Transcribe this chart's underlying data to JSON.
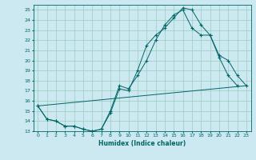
{
  "title": "",
  "xlabel": "Humidex (Indice chaleur)",
  "bg_color": "#cce8f0",
  "grid_color": "#99ccbb",
  "line_color": "#006666",
  "xlim": [
    -0.5,
    23.5
  ],
  "ylim": [
    13,
    25.5
  ],
  "xticks": [
    0,
    1,
    2,
    3,
    4,
    5,
    6,
    7,
    8,
    9,
    10,
    11,
    12,
    13,
    14,
    15,
    16,
    17,
    18,
    19,
    20,
    21,
    22,
    23
  ],
  "yticks": [
    13,
    14,
    15,
    16,
    17,
    18,
    19,
    20,
    21,
    22,
    23,
    24,
    25
  ],
  "line1_x": [
    0,
    1,
    2,
    3,
    4,
    5,
    6,
    7,
    8,
    9,
    10,
    11,
    12,
    13,
    14,
    15,
    16,
    17,
    18,
    19,
    20,
    21,
    22
  ],
  "line1_y": [
    15.5,
    14.2,
    14.0,
    13.5,
    13.5,
    13.2,
    13.0,
    13.2,
    14.8,
    17.2,
    17.0,
    19.0,
    21.5,
    22.5,
    23.2,
    24.2,
    25.2,
    25.0,
    23.5,
    22.5,
    20.3,
    18.5,
    17.5
  ],
  "line2_x": [
    0,
    1,
    2,
    3,
    4,
    5,
    6,
    7,
    8,
    9,
    10,
    11,
    12,
    13,
    14,
    15,
    16,
    17,
    18,
    19,
    20,
    21,
    22,
    23
  ],
  "line2_y": [
    15.5,
    14.2,
    14.0,
    13.5,
    13.5,
    13.2,
    13.0,
    13.2,
    15.0,
    17.5,
    17.2,
    18.5,
    20.0,
    22.0,
    23.5,
    24.5,
    25.0,
    23.2,
    22.5,
    22.5,
    20.5,
    20.0,
    18.5,
    17.5
  ],
  "line3_x": [
    0,
    23
  ],
  "line3_y": [
    15.5,
    17.5
  ]
}
